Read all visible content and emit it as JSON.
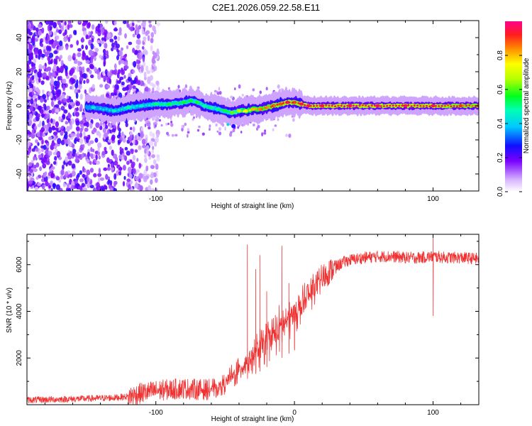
{
  "title": "C2E1.2026.059.22.58.E11",
  "chart_data": [
    {
      "type": "heatmap",
      "title": "C2E1.2026.059.22.58.E11",
      "xlabel": "Height of straight line (km)",
      "ylabel": "Frequency (Hz)",
      "xlim": [
        -193,
        133
      ],
      "ylim": [
        -50,
        50
      ],
      "x_ticks": [
        -100,
        0,
        100
      ],
      "x_tick_labels": [
        "-100",
        "",
        "100"
      ],
      "y_ticks": [
        -40,
        -20,
        0,
        20,
        40
      ],
      "y_tick_labels": [
        "-40",
        "-20",
        "0",
        "20",
        "40"
      ],
      "noise_region_x": [
        -193,
        -110
      ],
      "signal_track": {
        "x": [
          -145,
          -130,
          -120,
          -110,
          -100,
          -90,
          -80,
          -75,
          -70,
          -65,
          -60,
          -55,
          -50,
          -45,
          -40,
          -35,
          -30,
          -25,
          -20,
          -15,
          -10,
          -5,
          0,
          5,
          10,
          20,
          40,
          60,
          80,
          100,
          120,
          133
        ],
        "freq": [
          -1,
          -3,
          -1,
          0,
          1,
          1,
          2,
          3,
          2,
          0,
          -1,
          -2,
          -3,
          -4,
          -3,
          -3,
          -2,
          -2,
          -1,
          0,
          1,
          2,
          2,
          1,
          0,
          0,
          0,
          0,
          0,
          0,
          0,
          0
        ],
        "amplitude": [
          0.45,
          0.45,
          0.5,
          0.45,
          0.5,
          0.55,
          0.55,
          0.55,
          0.55,
          0.5,
          0.5,
          0.5,
          0.55,
          0.6,
          0.7,
          0.75,
          0.8,
          0.85,
          0.85,
          0.9,
          0.9,
          0.95,
          0.9,
          0.95,
          0.95,
          0.95,
          0.95,
          0.95,
          0.95,
          0.95,
          0.9,
          0.9
        ]
      },
      "colorbar": {
        "label": "Normalized spectral amplitude",
        "range": [
          0,
          1
        ],
        "ticks": [
          0.0,
          0.2,
          0.4,
          0.6,
          0.8
        ],
        "tick_labels": [
          "0.0",
          "0.2",
          "0.4",
          "0.6",
          "0.8"
        ]
      }
    },
    {
      "type": "line",
      "xlabel": "Height of straight line (km)",
      "ylabel": "SNR (10 * v/v)",
      "xlim": [
        -193,
        133
      ],
      "ylim": [
        0,
        7300
      ],
      "x_ticks": [
        -100,
        0,
        100
      ],
      "x_tick_labels": [
        "-100",
        "0",
        "100"
      ],
      "y_ticks": [
        2000,
        4000,
        6000
      ],
      "y_tick_labels": [
        "2000",
        "4000",
        "6000"
      ],
      "series": [
        {
          "name": "SNR",
          "color": "#f03232",
          "trend": {
            "x": [
              -193,
              -170,
              -150,
              -130,
              -120,
              -110,
              -100,
              -90,
              -80,
              -70,
              -60,
              -50,
              -45,
              -40,
              -35,
              -30,
              -25,
              -20,
              -15,
              -10,
              -5,
              0,
              5,
              10,
              15,
              20,
              25,
              30,
              35,
              40,
              50,
              60,
              70,
              80,
              90,
              100,
              110,
              120,
              133
            ],
            "y": [
              200,
              230,
              260,
              300,
              350,
              500,
              600,
              650,
              700,
              650,
              650,
              900,
              1200,
              1500,
              1800,
              2100,
              2400,
              2700,
              3000,
              3300,
              3600,
              3900,
              4200,
              4600,
              5000,
              5400,
              5700,
              5900,
              6100,
              6200,
              6300,
              6350,
              6350,
              6300,
              6300,
              6350,
              6300,
              6300,
              6250
            ]
          },
          "spikes": [
            {
              "x": -34,
              "y": 6850
            },
            {
              "x": -28,
              "y": 5800
            },
            {
              "x": -25,
              "y": 6400
            },
            {
              "x": -20,
              "y": 4850
            },
            {
              "x": -9,
              "y": 6800
            },
            {
              "x": -4,
              "y": 5200
            },
            {
              "x": 0,
              "y": 2400
            },
            {
              "x": 100,
              "y": 7300
            }
          ]
        }
      ]
    }
  ]
}
